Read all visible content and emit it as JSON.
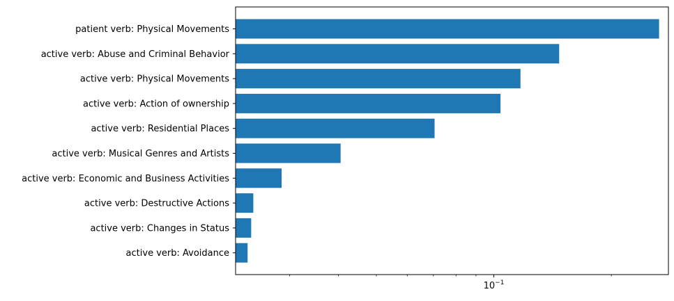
{
  "chart_data": {
    "type": "bar",
    "orientation": "horizontal",
    "title": "",
    "xlabel": "",
    "ylabel": "",
    "x_scale": "log",
    "xlim": [
      0.0218,
      0.28
    ],
    "x_tick_labels": [
      {
        "value": 0.1,
        "base": "10",
        "exp": "−1"
      }
    ],
    "bar_color": "#1f77b4",
    "categories": [
      "patient verb: Physical Movements",
      "active verb: Abuse and Criminal Behavior",
      "active verb: Physical Movements",
      "active verb: Action of ownership",
      "active verb: Residential Places",
      "active verb: Musical Genres and Artists",
      "active verb: Economic and Business Activities",
      "active verb: Destructive Actions",
      "active verb: Changes in Status",
      "active verb: Avoidance"
    ],
    "values": [
      0.265,
      0.147,
      0.117,
      0.104,
      0.0705,
      0.0405,
      0.0286,
      0.0242,
      0.0239,
      0.0234
    ]
  }
}
